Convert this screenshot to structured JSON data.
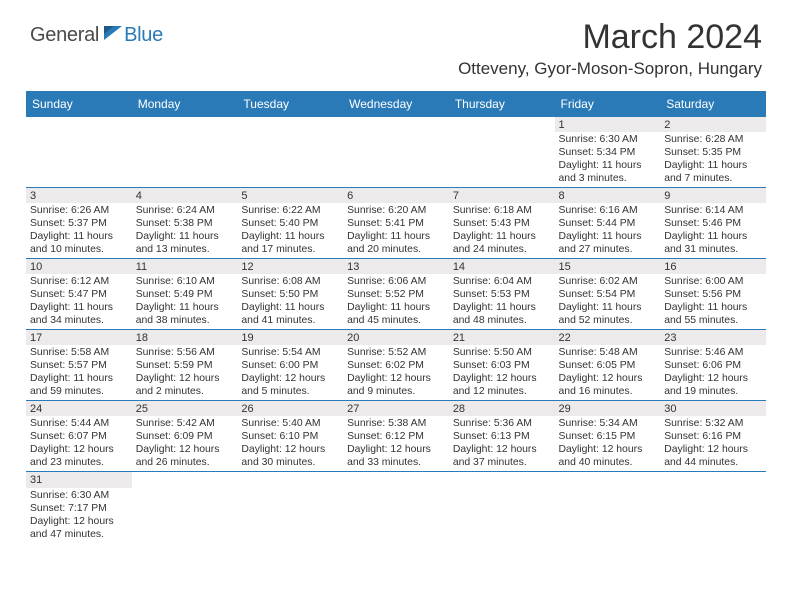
{
  "logo": {
    "general": "General",
    "blue": "Blue"
  },
  "colors": {
    "header_bg": "#2a7ab8",
    "header_text": "#ffffff",
    "daynum_bg": "#eceaea",
    "row_divider": "#2a7ab8",
    "body_text": "#333333",
    "page_bg": "#ffffff"
  },
  "typography": {
    "title_fontsize": 34,
    "location_fontsize": 17,
    "weekday_fontsize": 12,
    "cell_fontsize": 10.4
  },
  "title": "March 2024",
  "location": "Otteveny, Gyor-Moson-Sopron, Hungary",
  "weekdays": [
    "Sunday",
    "Monday",
    "Tuesday",
    "Wednesday",
    "Thursday",
    "Friday",
    "Saturday"
  ],
  "rows": [
    [
      null,
      null,
      null,
      null,
      null,
      {
        "n": "1",
        "sr": "Sunrise: 6:30 AM",
        "ss": "Sunset: 5:34 PM",
        "d1": "Daylight: 11 hours",
        "d2": "and 3 minutes."
      },
      {
        "n": "2",
        "sr": "Sunrise: 6:28 AM",
        "ss": "Sunset: 5:35 PM",
        "d1": "Daylight: 11 hours",
        "d2": "and 7 minutes."
      }
    ],
    [
      {
        "n": "3",
        "sr": "Sunrise: 6:26 AM",
        "ss": "Sunset: 5:37 PM",
        "d1": "Daylight: 11 hours",
        "d2": "and 10 minutes."
      },
      {
        "n": "4",
        "sr": "Sunrise: 6:24 AM",
        "ss": "Sunset: 5:38 PM",
        "d1": "Daylight: 11 hours",
        "d2": "and 13 minutes."
      },
      {
        "n": "5",
        "sr": "Sunrise: 6:22 AM",
        "ss": "Sunset: 5:40 PM",
        "d1": "Daylight: 11 hours",
        "d2": "and 17 minutes."
      },
      {
        "n": "6",
        "sr": "Sunrise: 6:20 AM",
        "ss": "Sunset: 5:41 PM",
        "d1": "Daylight: 11 hours",
        "d2": "and 20 minutes."
      },
      {
        "n": "7",
        "sr": "Sunrise: 6:18 AM",
        "ss": "Sunset: 5:43 PM",
        "d1": "Daylight: 11 hours",
        "d2": "and 24 minutes."
      },
      {
        "n": "8",
        "sr": "Sunrise: 6:16 AM",
        "ss": "Sunset: 5:44 PM",
        "d1": "Daylight: 11 hours",
        "d2": "and 27 minutes."
      },
      {
        "n": "9",
        "sr": "Sunrise: 6:14 AM",
        "ss": "Sunset: 5:46 PM",
        "d1": "Daylight: 11 hours",
        "d2": "and 31 minutes."
      }
    ],
    [
      {
        "n": "10",
        "sr": "Sunrise: 6:12 AM",
        "ss": "Sunset: 5:47 PM",
        "d1": "Daylight: 11 hours",
        "d2": "and 34 minutes."
      },
      {
        "n": "11",
        "sr": "Sunrise: 6:10 AM",
        "ss": "Sunset: 5:49 PM",
        "d1": "Daylight: 11 hours",
        "d2": "and 38 minutes."
      },
      {
        "n": "12",
        "sr": "Sunrise: 6:08 AM",
        "ss": "Sunset: 5:50 PM",
        "d1": "Daylight: 11 hours",
        "d2": "and 41 minutes."
      },
      {
        "n": "13",
        "sr": "Sunrise: 6:06 AM",
        "ss": "Sunset: 5:52 PM",
        "d1": "Daylight: 11 hours",
        "d2": "and 45 minutes."
      },
      {
        "n": "14",
        "sr": "Sunrise: 6:04 AM",
        "ss": "Sunset: 5:53 PM",
        "d1": "Daylight: 11 hours",
        "d2": "and 48 minutes."
      },
      {
        "n": "15",
        "sr": "Sunrise: 6:02 AM",
        "ss": "Sunset: 5:54 PM",
        "d1": "Daylight: 11 hours",
        "d2": "and 52 minutes."
      },
      {
        "n": "16",
        "sr": "Sunrise: 6:00 AM",
        "ss": "Sunset: 5:56 PM",
        "d1": "Daylight: 11 hours",
        "d2": "and 55 minutes."
      }
    ],
    [
      {
        "n": "17",
        "sr": "Sunrise: 5:58 AM",
        "ss": "Sunset: 5:57 PM",
        "d1": "Daylight: 11 hours",
        "d2": "and 59 minutes."
      },
      {
        "n": "18",
        "sr": "Sunrise: 5:56 AM",
        "ss": "Sunset: 5:59 PM",
        "d1": "Daylight: 12 hours",
        "d2": "and 2 minutes."
      },
      {
        "n": "19",
        "sr": "Sunrise: 5:54 AM",
        "ss": "Sunset: 6:00 PM",
        "d1": "Daylight: 12 hours",
        "d2": "and 5 minutes."
      },
      {
        "n": "20",
        "sr": "Sunrise: 5:52 AM",
        "ss": "Sunset: 6:02 PM",
        "d1": "Daylight: 12 hours",
        "d2": "and 9 minutes."
      },
      {
        "n": "21",
        "sr": "Sunrise: 5:50 AM",
        "ss": "Sunset: 6:03 PM",
        "d1": "Daylight: 12 hours",
        "d2": "and 12 minutes."
      },
      {
        "n": "22",
        "sr": "Sunrise: 5:48 AM",
        "ss": "Sunset: 6:05 PM",
        "d1": "Daylight: 12 hours",
        "d2": "and 16 minutes."
      },
      {
        "n": "23",
        "sr": "Sunrise: 5:46 AM",
        "ss": "Sunset: 6:06 PM",
        "d1": "Daylight: 12 hours",
        "d2": "and 19 minutes."
      }
    ],
    [
      {
        "n": "24",
        "sr": "Sunrise: 5:44 AM",
        "ss": "Sunset: 6:07 PM",
        "d1": "Daylight: 12 hours",
        "d2": "and 23 minutes."
      },
      {
        "n": "25",
        "sr": "Sunrise: 5:42 AM",
        "ss": "Sunset: 6:09 PM",
        "d1": "Daylight: 12 hours",
        "d2": "and 26 minutes."
      },
      {
        "n": "26",
        "sr": "Sunrise: 5:40 AM",
        "ss": "Sunset: 6:10 PM",
        "d1": "Daylight: 12 hours",
        "d2": "and 30 minutes."
      },
      {
        "n": "27",
        "sr": "Sunrise: 5:38 AM",
        "ss": "Sunset: 6:12 PM",
        "d1": "Daylight: 12 hours",
        "d2": "and 33 minutes."
      },
      {
        "n": "28",
        "sr": "Sunrise: 5:36 AM",
        "ss": "Sunset: 6:13 PM",
        "d1": "Daylight: 12 hours",
        "d2": "and 37 minutes."
      },
      {
        "n": "29",
        "sr": "Sunrise: 5:34 AM",
        "ss": "Sunset: 6:15 PM",
        "d1": "Daylight: 12 hours",
        "d2": "and 40 minutes."
      },
      {
        "n": "30",
        "sr": "Sunrise: 5:32 AM",
        "ss": "Sunset: 6:16 PM",
        "d1": "Daylight: 12 hours",
        "d2": "and 44 minutes."
      }
    ],
    [
      {
        "n": "31",
        "sr": "Sunrise: 6:30 AM",
        "ss": "Sunset: 7:17 PM",
        "d1": "Daylight: 12 hours",
        "d2": "and 47 minutes."
      },
      null,
      null,
      null,
      null,
      null,
      null
    ]
  ]
}
